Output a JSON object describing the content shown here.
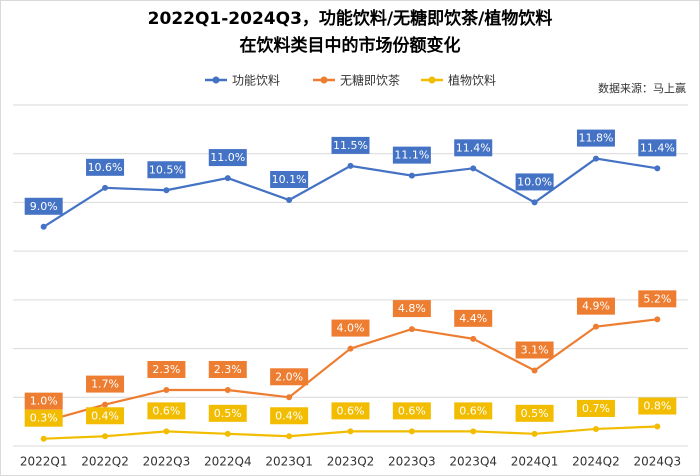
{
  "chart_data": {
    "type": "line",
    "title": [
      "2022Q1-2024Q3，功能饮料/无糖即饮茶/植物饮料",
      "在饮料类目中的市场份额变化"
    ],
    "source": "数据来源：马上赢",
    "categories": [
      "2022Q1",
      "2022Q2",
      "2022Q3",
      "2022Q4",
      "2023Q1",
      "2023Q2",
      "2023Q3",
      "2023Q4",
      "2024Q1",
      "2024Q2",
      "2024Q3"
    ],
    "series": [
      {
        "name": "功能饮料",
        "color": "#4472c4",
        "values": [
          9.0,
          10.6,
          10.5,
          11.0,
          10.1,
          11.5,
          11.1,
          11.4,
          10.0,
          11.8,
          11.4
        ],
        "value_labels": [
          "9.0%",
          "10.6%",
          "10.5%",
          "11.0%",
          "10.1%",
          "11.5%",
          "11.1%",
          "11.4%",
          "10.0%",
          "11.8%",
          "11.4%"
        ]
      },
      {
        "name": "无糖即饮茶",
        "color": "#ed7d31",
        "values": [
          1.0,
          1.7,
          2.3,
          2.3,
          2.0,
          4.0,
          4.8,
          4.4,
          3.1,
          4.9,
          5.2
        ],
        "value_labels": [
          "1.0%",
          "1.7%",
          "2.3%",
          "2.3%",
          "2.0%",
          "4.0%",
          "4.8%",
          "4.4%",
          "3.1%",
          "4.9%",
          "5.2%"
        ]
      },
      {
        "name": "植物饮料",
        "color": "#f2bd00",
        "values": [
          0.3,
          0.4,
          0.6,
          0.5,
          0.4,
          0.6,
          0.6,
          0.6,
          0.5,
          0.7,
          0.8
        ],
        "value_labels": [
          "0.3%",
          "0.4%",
          "0.6%",
          "0.5%",
          "0.4%",
          "0.6%",
          "0.6%",
          "0.6%",
          "0.5%",
          "0.7%",
          "0.8%"
        ]
      }
    ],
    "ylim": [
      0,
      14
    ],
    "yticks": [
      0,
      2,
      4,
      6,
      8,
      10,
      12,
      14
    ],
    "grid": true
  }
}
